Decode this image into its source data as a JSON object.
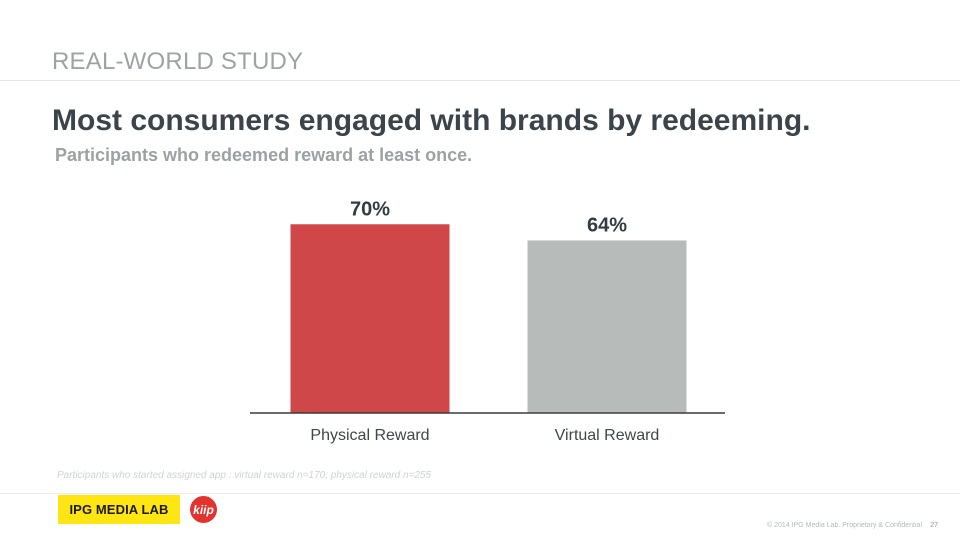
{
  "header": {
    "section_label": "REAL-WORLD STUDY",
    "headline": "Most consumers engaged with brands by redeeming.",
    "subhead": "Participants who redeemed reward at least once."
  },
  "chart_data": {
    "type": "bar",
    "title": "",
    "categories": [
      "Physical Reward",
      "Virtual Reward"
    ],
    "values": [
      70,
      64
    ],
    "value_labels": [
      "70%",
      "64%"
    ],
    "colors": [
      "#cf4748",
      "#b7bcbb"
    ],
    "xlabel": "",
    "ylabel": "",
    "ylim": [
      0,
      79
    ],
    "grid": false,
    "legend": "none"
  },
  "footnote": "Participants who started assigned app : virtual reward n=170; physical reward n=255",
  "footer": {
    "ipg_logo_text": "IPG MEDIA LAB",
    "kiip_logo_text": "kiip",
    "copyright": "© 2014 IPG Media Lab. Proprietary & Confidential",
    "page_number": "27"
  }
}
